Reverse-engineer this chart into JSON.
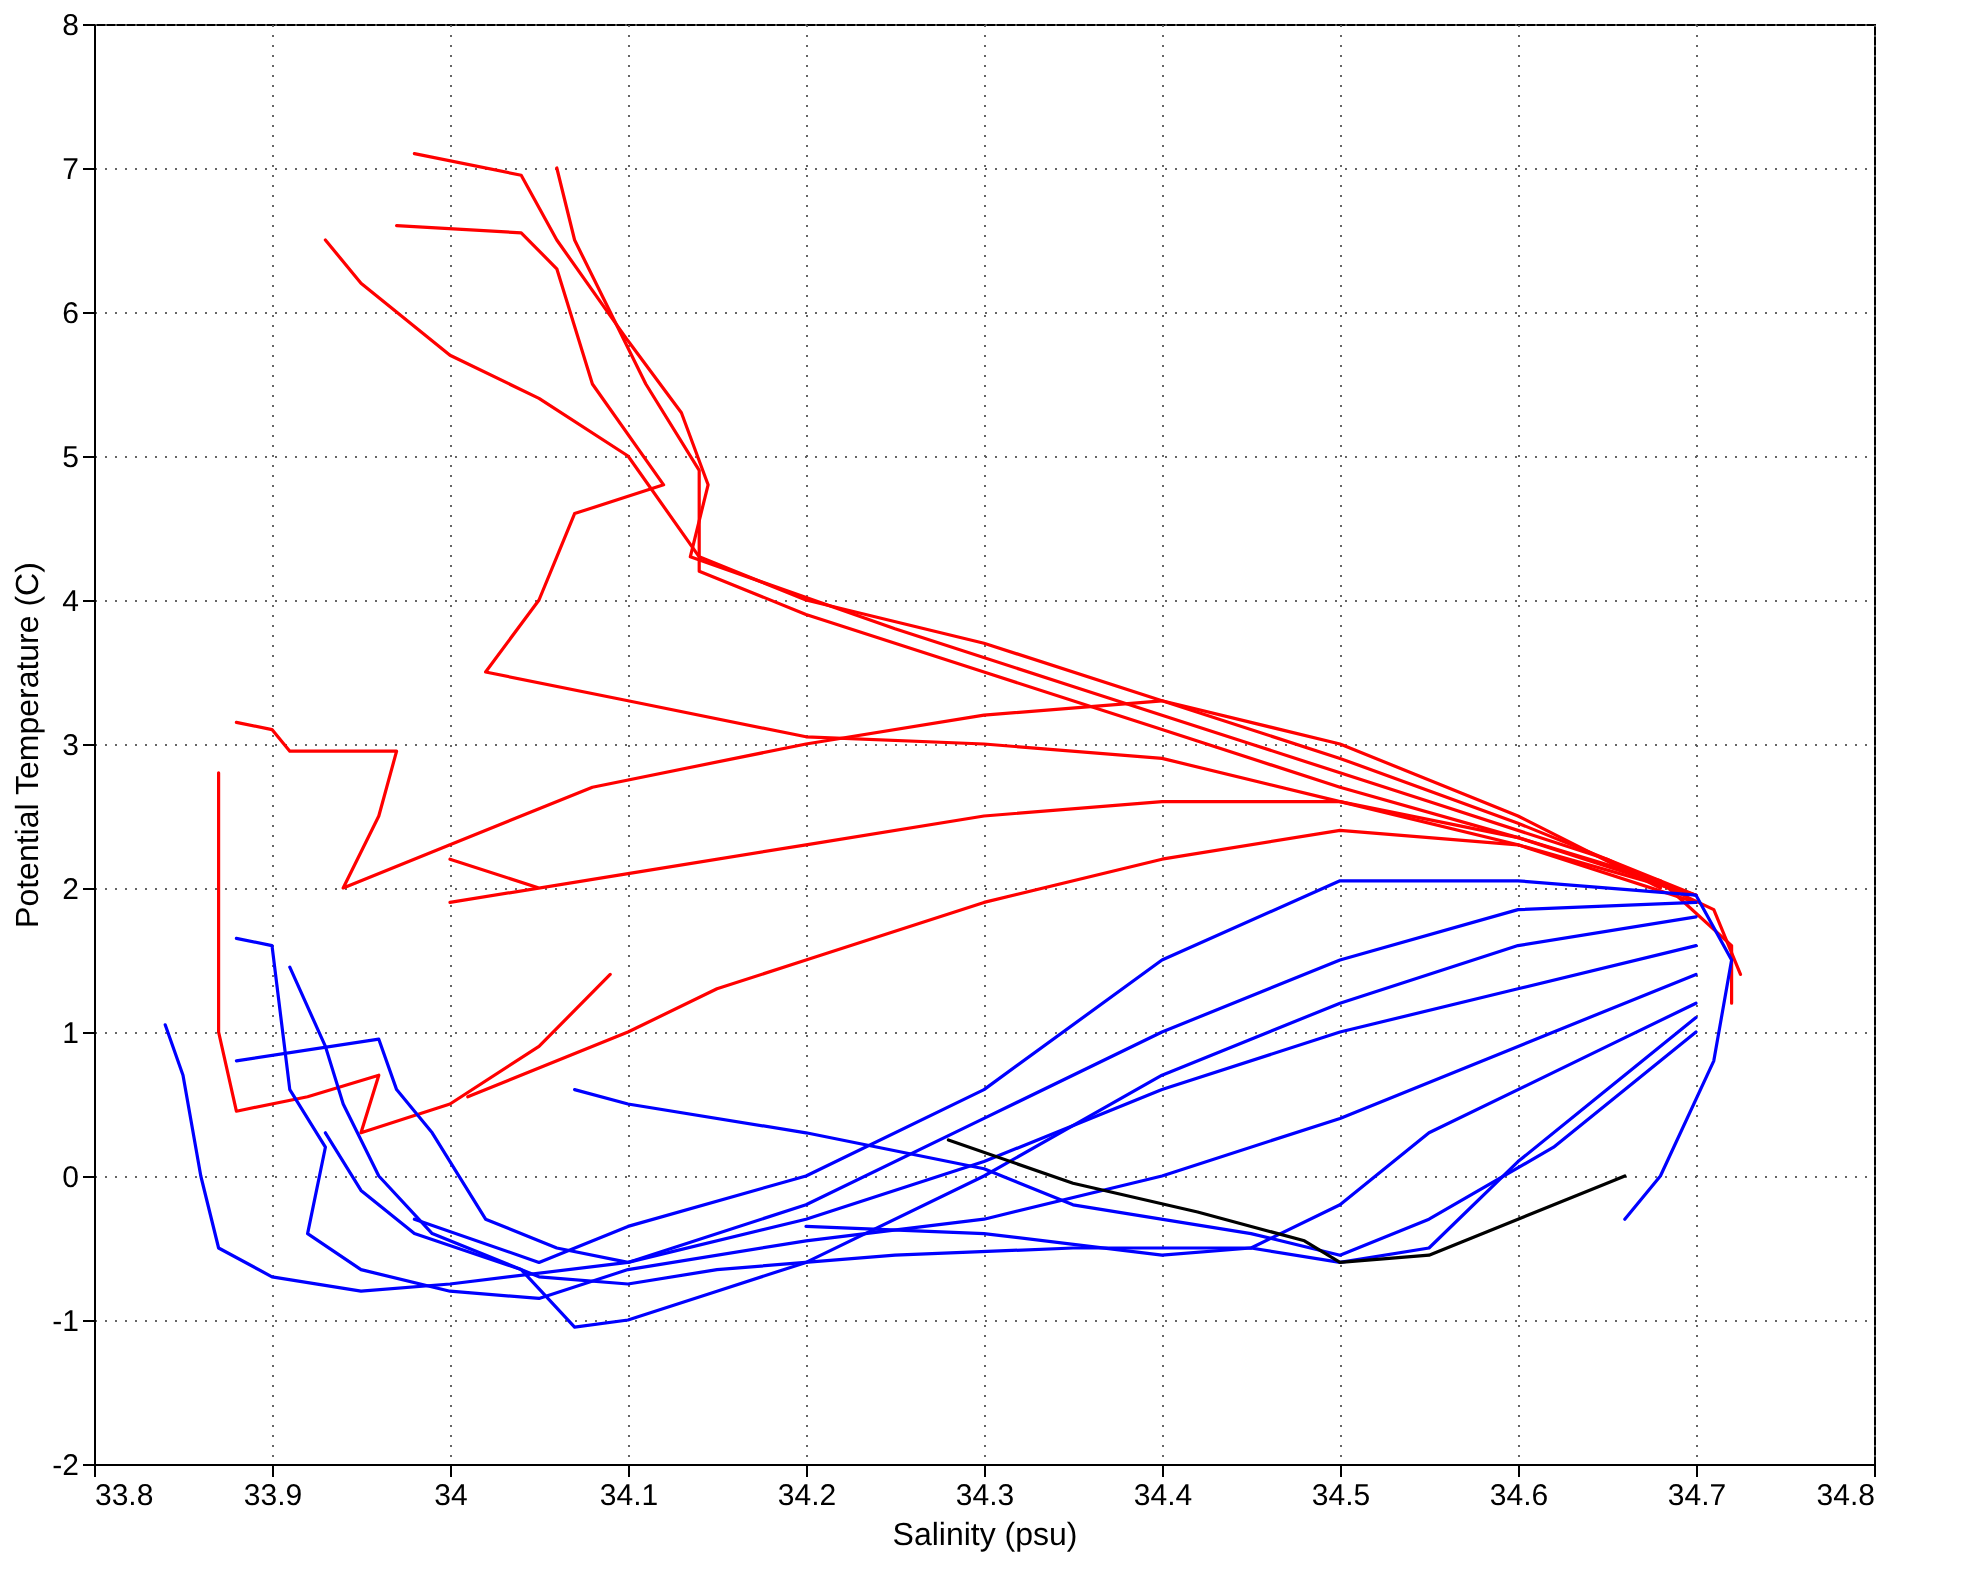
{
  "chart_data": {
    "type": "line",
    "xlabel": "Salinity (psu)",
    "ylabel": "Potential Temperature (C)",
    "xlim": [
      33.8,
      34.8
    ],
    "xticks": [
      33.8,
      33.9,
      34,
      34.1,
      34.2,
      34.3,
      34.4,
      34.5,
      34.6,
      34.7,
      34.8
    ],
    "ylim": [
      -2,
      8
    ],
    "yticks": [
      -2,
      -1,
      0,
      1,
      2,
      3,
      4,
      5,
      6,
      7,
      8
    ],
    "grid": true,
    "legend": false,
    "marker": "none",
    "line_style": "solid",
    "series": [
      {
        "color": "#ff0000",
        "x": [
          34.06,
          34.07,
          34.09,
          34.11,
          34.14,
          34.14,
          34.2,
          34.3,
          34.4,
          34.5,
          34.6,
          34.68,
          34.72,
          34.72
        ],
        "values": [
          7.0,
          6.5,
          6.0,
          5.5,
          4.9,
          4.2,
          3.9,
          3.5,
          3.1,
          2.7,
          2.35,
          2.05,
          1.6,
          1.2
        ]
      },
      {
        "color": "#ff0000",
        "x": [
          33.98,
          34.04,
          34.06,
          34.1,
          34.13,
          34.145,
          34.135,
          34.25,
          34.35,
          34.45,
          34.55,
          34.65,
          34.71,
          34.725
        ],
        "values": [
          7.1,
          6.95,
          6.5,
          5.8,
          5.3,
          4.8,
          4.3,
          3.8,
          3.4,
          3.0,
          2.6,
          2.2,
          1.85,
          1.4
        ]
      },
      {
        "color": "#ff0000",
        "x": [
          33.93,
          33.95,
          34.0,
          34.05,
          34.1,
          34.14,
          34.2,
          34.3,
          34.4,
          34.5,
          34.6,
          34.7
        ],
        "values": [
          6.5,
          6.2,
          5.7,
          5.4,
          5.0,
          4.3,
          4.0,
          3.7,
          3.3,
          2.9,
          2.45,
          1.95
        ]
      },
      {
        "color": "#ff0000",
        "x": [
          33.97,
          34.04,
          34.06,
          34.08,
          34.12,
          34.07,
          34.06,
          34.05,
          34.02,
          34.1,
          34.2,
          34.3,
          34.4,
          34.5,
          34.6,
          34.7
        ],
        "values": [
          6.6,
          6.55,
          6.3,
          5.5,
          4.8,
          4.6,
          4.3,
          4.0,
          3.5,
          3.3,
          3.05,
          3.0,
          2.9,
          2.6,
          2.3,
          1.9
        ]
      },
      {
        "color": "#ff0000",
        "x": [
          33.88,
          33.9,
          33.91,
          33.97,
          33.96,
          33.94,
          34.0,
          34.08,
          34.2,
          34.3,
          34.4,
          34.5,
          34.6,
          34.68
        ],
        "values": [
          3.15,
          3.1,
          2.95,
          2.95,
          2.5,
          2.0,
          2.3,
          2.7,
          3.0,
          3.2,
          3.3,
          3.0,
          2.5,
          2.0
        ]
      },
      {
        "color": "#ff0000",
        "x": [
          33.87,
          33.87,
          33.87,
          33.88,
          33.92,
          33.96,
          33.95,
          34.0,
          34.05,
          34.09
        ],
        "values": [
          2.8,
          2.0,
          1.0,
          0.45,
          0.55,
          0.7,
          0.3,
          0.5,
          0.9,
          1.4
        ]
      },
      {
        "color": "#ff0000",
        "x": [
          34.01,
          34.1,
          34.15,
          34.2,
          34.3,
          34.4,
          34.5,
          34.6,
          34.7
        ],
        "values": [
          0.55,
          1.0,
          1.3,
          1.5,
          1.9,
          2.2,
          2.4,
          2.3,
          1.95
        ]
      },
      {
        "color": "#ff0000",
        "x": [
          34.0,
          34.05,
          34.0,
          34.1,
          34.2,
          34.3,
          34.4,
          34.5,
          34.6,
          34.7
        ],
        "values": [
          2.2,
          2.0,
          1.9,
          2.1,
          2.3,
          2.5,
          2.6,
          2.6,
          2.35,
          1.95
        ]
      },
      {
        "color": "#0000ff",
        "x": [
          33.84,
          33.85,
          33.86,
          33.87,
          33.9,
          33.95,
          34.0,
          34.1,
          34.2,
          34.3,
          34.4,
          34.5,
          34.6,
          34.7
        ],
        "values": [
          1.05,
          0.7,
          0.0,
          -0.5,
          -0.7,
          -0.8,
          -0.75,
          -0.6,
          -0.3,
          0.1,
          0.6,
          1.0,
          1.3,
          1.6
        ]
      },
      {
        "color": "#0000ff",
        "x": [
          33.88,
          33.9,
          33.91,
          33.93,
          33.92,
          33.95,
          34.0,
          34.05,
          34.1,
          34.2,
          34.3,
          34.4,
          34.5,
          34.6,
          34.7
        ],
        "values": [
          1.65,
          1.6,
          0.6,
          0.2,
          -0.4,
          -0.65,
          -0.8,
          -0.85,
          -0.65,
          -0.45,
          -0.3,
          0.0,
          0.4,
          0.9,
          1.4
        ]
      },
      {
        "color": "#0000ff",
        "x": [
          33.91,
          33.93,
          33.94,
          33.96,
          33.99,
          34.05,
          34.1,
          34.15,
          34.25,
          34.35,
          34.45,
          34.5,
          34.55,
          34.65,
          34.7
        ],
        "values": [
          1.45,
          0.9,
          0.5,
          0.0,
          -0.4,
          -0.7,
          -0.75,
          -0.65,
          -0.55,
          -0.5,
          -0.5,
          -0.2,
          0.3,
          0.9,
          1.2
        ]
      },
      {
        "color": "#0000ff",
        "x": [
          33.93,
          33.95,
          33.98,
          34.04,
          34.07,
          34.1,
          34.15,
          34.2,
          34.3,
          34.4,
          34.5,
          34.6,
          34.7
        ],
        "values": [
          0.3,
          -0.1,
          -0.4,
          -0.65,
          -1.05,
          -1.0,
          -0.8,
          -0.6,
          0.0,
          0.7,
          1.2,
          1.6,
          1.8
        ]
      },
      {
        "color": "#0000ff",
        "x": [
          33.88,
          33.96,
          33.97,
          33.99,
          34.02,
          34.06,
          34.1,
          34.2,
          34.3,
          34.4,
          34.5,
          34.6,
          34.7
        ],
        "values": [
          0.8,
          0.95,
          0.6,
          0.3,
          -0.3,
          -0.5,
          -0.6,
          -0.2,
          0.4,
          1.0,
          1.5,
          1.85,
          1.9
        ]
      },
      {
        "color": "#0000ff",
        "x": [
          34.07,
          34.1,
          34.2,
          34.3,
          34.35,
          34.45,
          34.5,
          34.55,
          34.62,
          34.7
        ],
        "values": [
          0.6,
          0.5,
          0.3,
          0.05,
          -0.2,
          -0.4,
          -0.55,
          -0.3,
          0.2,
          1.0
        ]
      },
      {
        "color": "#0000ff",
        "x": [
          33.98,
          34.05,
          34.1,
          34.2,
          34.3,
          34.4,
          34.5,
          34.6,
          34.7,
          34.72,
          34.71,
          34.68,
          34.66
        ],
        "values": [
          -0.3,
          -0.6,
          -0.35,
          0.0,
          0.6,
          1.5,
          2.05,
          2.05,
          1.95,
          1.5,
          0.8,
          0.0,
          -0.3
        ]
      },
      {
        "color": "#0000ff",
        "x": [
          34.2,
          34.3,
          34.4,
          34.45,
          34.5,
          34.55,
          34.6,
          34.65,
          34.7
        ],
        "values": [
          -0.35,
          -0.4,
          -0.55,
          -0.5,
          -0.6,
          -0.5,
          0.1,
          0.6,
          1.1
        ]
      },
      {
        "color": "#000000",
        "x": [
          34.28,
          34.35,
          34.42,
          34.48,
          34.5,
          34.55,
          34.6,
          34.65,
          34.66
        ],
        "values": [
          0.25,
          -0.05,
          -0.25,
          -0.45,
          -0.6,
          -0.55,
          -0.3,
          -0.05,
          0.0
        ]
      }
    ]
  }
}
